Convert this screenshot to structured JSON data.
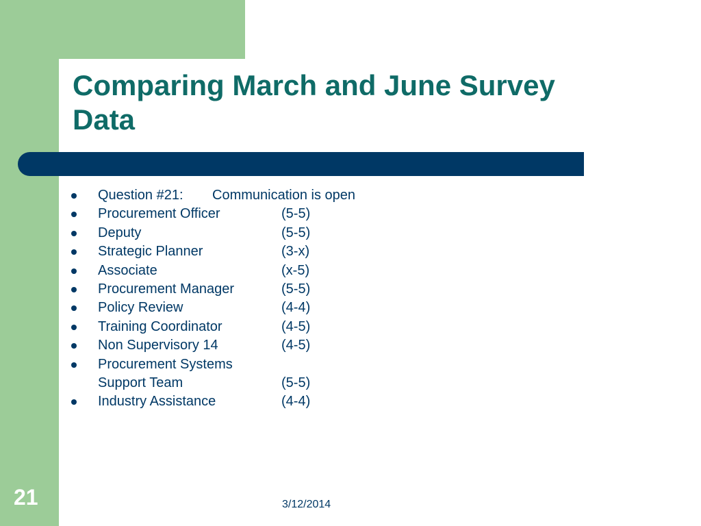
{
  "slide": {
    "title": "Comparing March and June Survey Data",
    "number": "21",
    "date": "3/12/2014"
  },
  "question": {
    "label": "Question #21:",
    "text": "Communication is open"
  },
  "items": [
    {
      "label": "Procurement Officer",
      "value": "(5-5)"
    },
    {
      "label": "Deputy",
      "value": "(5-5)"
    },
    {
      "label": "Strategic Planner",
      "value": "(3-x)"
    },
    {
      "label": "Associate",
      "value": "(x-5)"
    },
    {
      "label": "Procurement Manager",
      "value": "(5-5)"
    },
    {
      "label": "Policy Review",
      "value": "(4-4)"
    },
    {
      "label": "Training Coordinator",
      "value": "(4-5)"
    },
    {
      "label": "Non Supervisory 14",
      "value": "(4-5)"
    },
    {
      "label_line1": "Procurement Systems",
      "label_line2": "Support Team",
      "value": "(5-5)"
    },
    {
      "label": "Industry Assistance",
      "value": "(4-4)"
    }
  ],
  "colors": {
    "background_green": "#9ccc98",
    "title": "#0f6b67",
    "bar": "#003865",
    "body_text": "#003865"
  }
}
